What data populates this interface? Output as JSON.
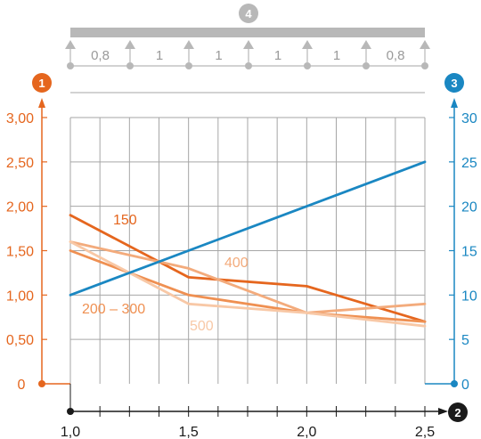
{
  "chart_data": {
    "type": "line",
    "title": "",
    "x_axis": {
      "marker": "2",
      "ticks": [
        "1,0",
        "1,5",
        "2,0",
        "2,5"
      ],
      "range": [
        1.0,
        2.5
      ]
    },
    "left_axis": {
      "marker": "1",
      "ticks": [
        "0",
        "0,50",
        "1,00",
        "1,50",
        "2,00",
        "2,50",
        "3,00"
      ],
      "range": [
        0,
        3.0
      ]
    },
    "right_axis": {
      "marker": "3",
      "ticks": [
        "0",
        "5",
        "10",
        "15",
        "20",
        "25",
        "30"
      ],
      "range": [
        0,
        30
      ]
    },
    "beam": {
      "marker": "4",
      "spans": [
        "0,8",
        "1",
        "1",
        "1",
        "1",
        "0,8"
      ]
    },
    "grid": true,
    "series": [
      {
        "name": "150",
        "axis": "left",
        "color": "#e5661e",
        "x": [
          1.0,
          1.5,
          2.0,
          2.5
        ],
        "y": [
          1.9,
          1.2,
          1.1,
          0.7
        ]
      },
      {
        "name": "200 – 300",
        "axis": "left",
        "color": "#ef9052",
        "x": [
          1.0,
          1.5,
          2.0,
          2.5
        ],
        "y": [
          1.5,
          1.0,
          0.8,
          0.7
        ]
      },
      {
        "name": "400",
        "axis": "left",
        "color": "#f3ab7c",
        "x": [
          1.0,
          1.5,
          2.0,
          2.5
        ],
        "y": [
          1.6,
          1.3,
          0.8,
          0.9
        ]
      },
      {
        "name": "500",
        "axis": "left",
        "color": "#f8c8a6",
        "x": [
          1.0,
          1.5,
          2.0,
          2.5
        ],
        "y": [
          1.6,
          0.9,
          0.8,
          0.65
        ]
      },
      {
        "name": "",
        "axis": "right",
        "color": "#1a87c2",
        "x": [
          1.0,
          2.5
        ],
        "y": [
          10,
          25
        ]
      }
    ],
    "colors": {
      "left_axis": "#e5661e",
      "right_axis": "#1a87c2",
      "grid": "#a6a6a6",
      "beam": "#b8b8b8",
      "x_axis": "#1a1a1a"
    }
  }
}
